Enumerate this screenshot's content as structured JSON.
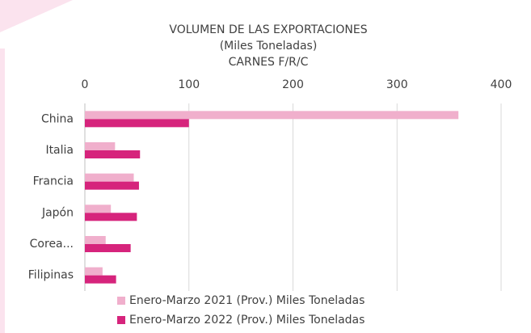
{
  "chart_data": {
    "type": "hbar",
    "title_lines": [
      "VOLUMEN DE LAS EXPORTACIONES",
      "(Miles Toneladas)",
      "CARNES F/R/C"
    ],
    "categories": [
      "China",
      "Italia",
      "Francia",
      "Japón",
      "Corea...",
      "Filipinas"
    ],
    "series": [
      {
        "name": "Enero-Marzo 2021 (Prov.) Miles Toneladas",
        "color": "#f0afcc",
        "values": [
          359,
          29,
          47,
          25,
          20,
          17
        ]
      },
      {
        "name": "Enero-Marzo 2022 (Prov.) Miles Toneladas",
        "color": "#d6247c",
        "values": [
          100,
          53,
          52,
          50,
          44,
          30
        ]
      }
    ],
    "xlim": [
      0,
      400
    ],
    "xticks": [
      0,
      100,
      200,
      300,
      400
    ],
    "grid": true
  }
}
